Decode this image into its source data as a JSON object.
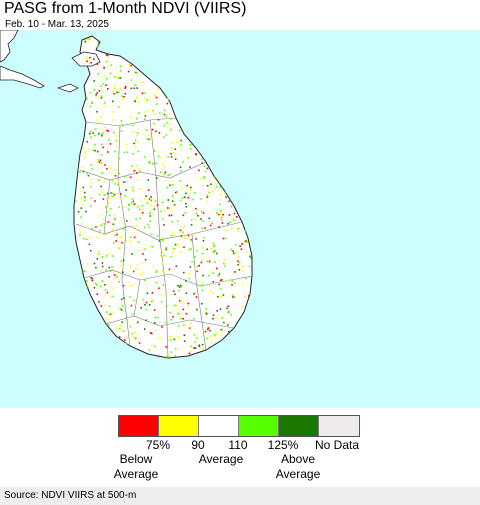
{
  "header": {
    "title": "PASG from 1-Month NDVI (VIIRS)",
    "date_range": "Feb. 10 - Mar. 13, 2025"
  },
  "map": {
    "water_color": "#cdfefe",
    "land_color": "#ffffff",
    "mainland_color": "#3fbf3f"
  },
  "legend": {
    "swatches": [
      {
        "color": "#ff0000"
      },
      {
        "color": "#ffff00"
      },
      {
        "color": "#ffffff"
      },
      {
        "color": "#55ff00"
      },
      {
        "color": "#1a7800"
      },
      {
        "color": "#eeeaee"
      }
    ],
    "ticks": [
      "75%",
      "90",
      "110",
      "125%",
      "No Data"
    ],
    "below": {
      "line1": "Below",
      "line2": "Average"
    },
    "average": "Average",
    "above": {
      "line1": "Above",
      "line2": "Average"
    }
  },
  "footer": {
    "source": "Source: NDVI VIIRS at 500-m"
  }
}
